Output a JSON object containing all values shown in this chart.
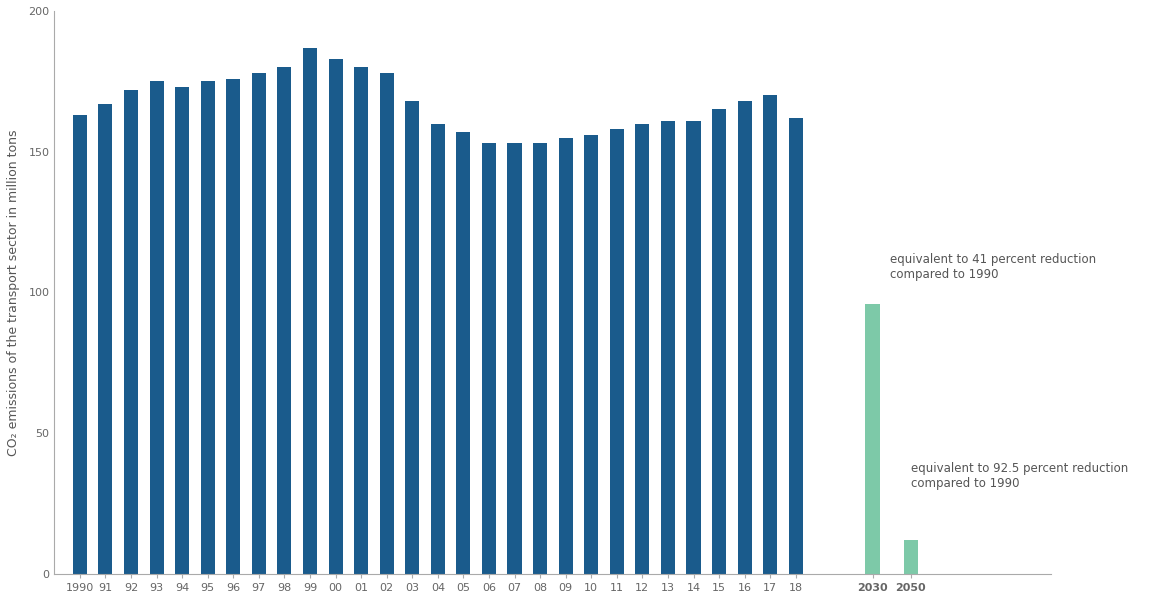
{
  "years_historical": [
    "1990",
    "91",
    "92",
    "93",
    "94",
    "95",
    "96",
    "97",
    "98",
    "99",
    "00",
    "01",
    "02",
    "03",
    "04",
    "05",
    "06",
    "07",
    "08",
    "09",
    "10",
    "11",
    "12",
    "13",
    "14",
    "15",
    "16",
    "17",
    "18"
  ],
  "values_historical": [
    163,
    167,
    172,
    175,
    173,
    175,
    176,
    178,
    180,
    187,
    183,
    180,
    178,
    168,
    160,
    157,
    153,
    153,
    153,
    155,
    156,
    158,
    160,
    161,
    161,
    165,
    168,
    170,
    162
  ],
  "years_future": [
    "2030",
    "2050"
  ],
  "values_future": [
    96,
    12
  ],
  "bar_color_historical": "#1a5b8c",
  "bar_color_future": "#7dc9a8",
  "background_color": "#ffffff",
  "ylabel": "CO₂ emissions of the transport sector in million tons",
  "ylim": [
    0,
    200
  ],
  "yticks": [
    0,
    50,
    100,
    150,
    200
  ],
  "annotation_2030_line1": "equivalent to 41 percent reduction",
  "annotation_2030_line2": "compared to 1990",
  "annotation_2050_line1": "equivalent to 92.5 percent reduction",
  "annotation_2050_line2": "compared to 1990",
  "axis_fontsize": 9,
  "tick_fontsize": 8,
  "annot_fontsize": 8.5,
  "bar_width": 0.55
}
